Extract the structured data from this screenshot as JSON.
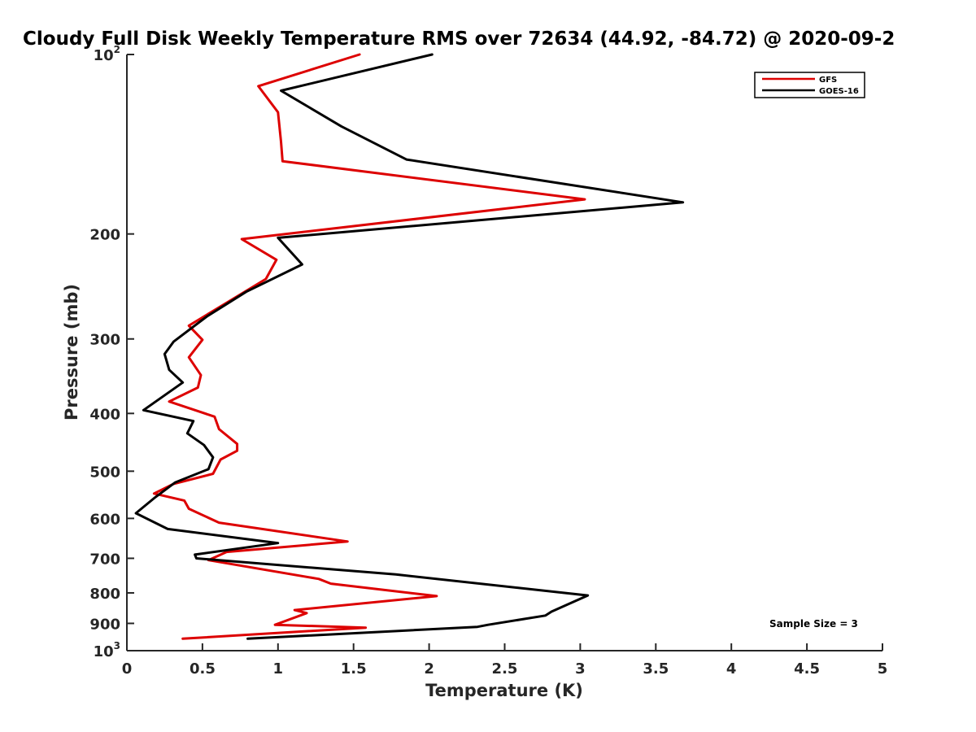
{
  "chart_data": {
    "type": "line",
    "title": "Cloudy Full Disk Weekly Temperature RMS over 72634 (44.92, -84.72) @ 2020-09-2",
    "xlabel": "Temperature (K)",
    "ylabel": "Pressure (mb)",
    "xlim": [
      0,
      5
    ],
    "ylim": [
      100,
      1000
    ],
    "y_scale": "log",
    "y_reversed": true,
    "x_ticks": [
      "0",
      "0.5",
      "1",
      "1.5",
      "2",
      "2.5",
      "3",
      "3.5",
      "4",
      "4.5",
      "5"
    ],
    "y_ticks": [
      {
        "value": 100,
        "label": "10",
        "sup": "2"
      },
      {
        "value": 200,
        "label": "200",
        "sup": ""
      },
      {
        "value": 300,
        "label": "300",
        "sup": ""
      },
      {
        "value": 400,
        "label": "400",
        "sup": ""
      },
      {
        "value": 500,
        "label": "500",
        "sup": ""
      },
      {
        "value": 600,
        "label": "600",
        "sup": ""
      },
      {
        "value": 700,
        "label": "700",
        "sup": ""
      },
      {
        "value": 800,
        "label": "800",
        "sup": ""
      },
      {
        "value": 900,
        "label": "900",
        "sup": ""
      },
      {
        "value": 1000,
        "label": "10",
        "sup": "3"
      }
    ],
    "legend_position": "top-right",
    "annotation": "Sample Size = 3",
    "series": [
      {
        "name": "GFS",
        "color": "#dd0000",
        "points": [
          [
            1.54,
            100
          ],
          [
            0.87,
            113
          ],
          [
            1.0,
            125
          ],
          [
            1.02,
            140
          ],
          [
            1.03,
            151
          ],
          [
            3.03,
            175
          ],
          [
            0.76,
            204
          ],
          [
            0.99,
            221
          ],
          [
            0.92,
            238
          ],
          [
            0.41,
            285
          ],
          [
            0.5,
            301
          ],
          [
            0.41,
            322
          ],
          [
            0.49,
            345
          ],
          [
            0.47,
            362
          ],
          [
            0.28,
            382
          ],
          [
            0.58,
            405
          ],
          [
            0.61,
            425
          ],
          [
            0.73,
            450
          ],
          [
            0.73,
            462
          ],
          [
            0.62,
            478
          ],
          [
            0.57,
            505
          ],
          [
            0.31,
            525
          ],
          [
            0.18,
            545
          ],
          [
            0.38,
            560
          ],
          [
            0.41,
            578
          ],
          [
            0.61,
            610
          ],
          [
            1.46,
            656
          ],
          [
            0.66,
            683
          ],
          [
            0.54,
            705
          ],
          [
            1.27,
            758
          ],
          [
            1.35,
            772
          ],
          [
            2.05,
            810
          ],
          [
            1.11,
            855
          ],
          [
            1.19,
            865
          ],
          [
            0.98,
            905
          ],
          [
            1.58,
            915
          ],
          [
            0.37,
            955
          ]
        ]
      },
      {
        "name": "GOES-16",
        "color": "#000000",
        "points": [
          [
            2.02,
            100
          ],
          [
            1.02,
            115
          ],
          [
            1.42,
            132
          ],
          [
            1.85,
            150
          ],
          [
            3.68,
            177
          ],
          [
            1.0,
            203
          ],
          [
            1.16,
            225
          ],
          [
            0.79,
            250
          ],
          [
            0.53,
            275
          ],
          [
            0.31,
            303
          ],
          [
            0.25,
            318
          ],
          [
            0.28,
            338
          ],
          [
            0.37,
            355
          ],
          [
            0.11,
            395
          ],
          [
            0.44,
            412
          ],
          [
            0.4,
            432
          ],
          [
            0.51,
            452
          ],
          [
            0.57,
            474
          ],
          [
            0.54,
            496
          ],
          [
            0.32,
            522
          ],
          [
            0.18,
            555
          ],
          [
            0.06,
            588
          ],
          [
            0.27,
            625
          ],
          [
            1.0,
            660
          ],
          [
            0.45,
            690
          ],
          [
            0.46,
            700
          ],
          [
            1.78,
            745
          ],
          [
            3.05,
            808
          ],
          [
            2.97,
            825
          ],
          [
            2.81,
            860
          ],
          [
            2.77,
            873
          ],
          [
            2.39,
            905
          ],
          [
            2.32,
            912
          ],
          [
            0.8,
            955
          ]
        ]
      }
    ]
  }
}
